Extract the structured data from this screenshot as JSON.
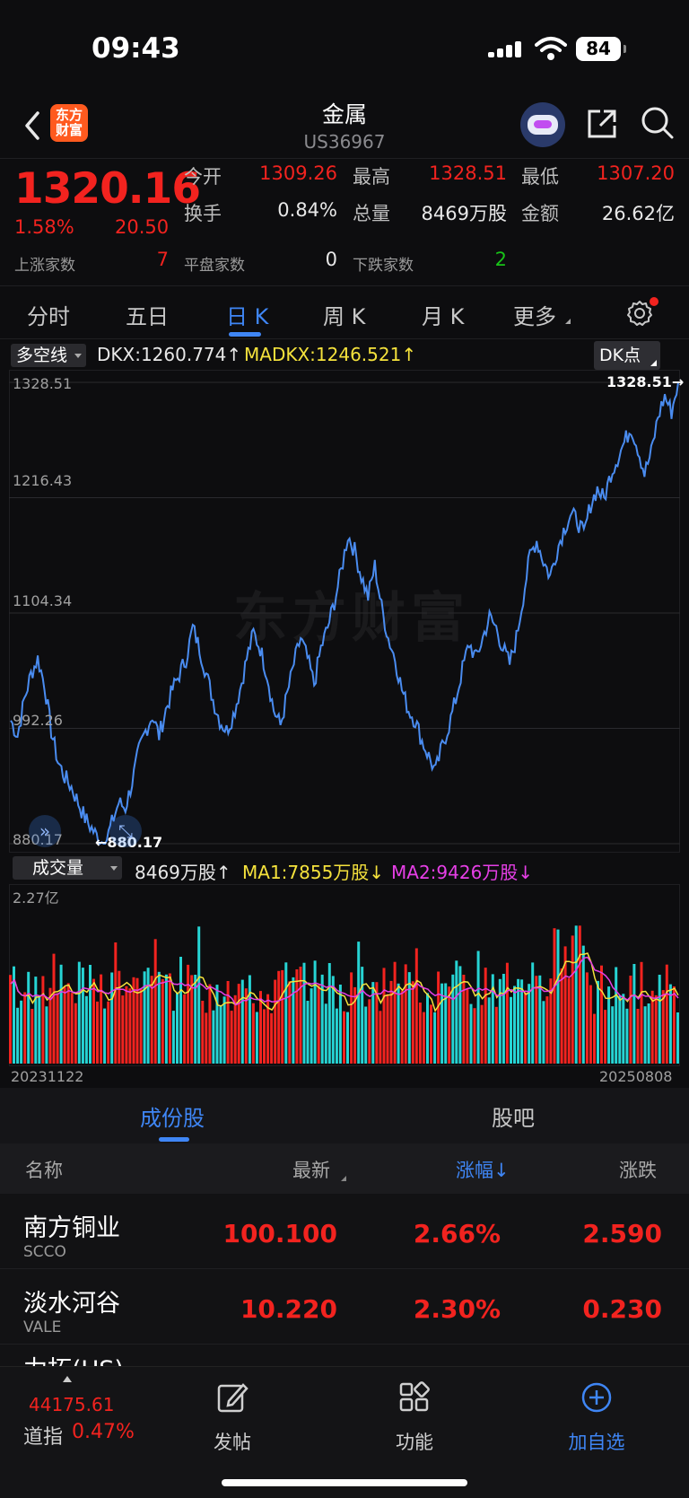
{
  "status": {
    "time": "09:43",
    "battery": "84"
  },
  "header": {
    "title": "金属",
    "code": "US36967",
    "logo_line1": "东方",
    "logo_line2": "财富"
  },
  "quote": {
    "price": "1320.16",
    "pct": "1.58%",
    "change": "20.50",
    "open_label": "今开",
    "open": "1309.26",
    "high_label": "最高",
    "high": "1328.51",
    "low_label": "最低",
    "low": "1307.20",
    "turnover_label": "换手",
    "turnover": "0.84%",
    "volume_label": "总量",
    "volume": "8469万股",
    "amount_label": "金额",
    "amount": "26.62亿",
    "up_label": "上涨家数",
    "up": "7",
    "flat_label": "平盘家数",
    "flat": "0",
    "down_label": "下跌家数",
    "down": "2"
  },
  "tabs": [
    "分时",
    "五日",
    "日 K",
    "周 K",
    "月 K",
    "更多"
  ],
  "indicator": {
    "dropdown": "多空线",
    "dkx": "DKX:1260.774↑",
    "madkx": "MADKX:1246.521↑",
    "dk_button": "DK点"
  },
  "price_axis": {
    "ticks": [
      "1328.51",
      "1216.43",
      "1104.34",
      "992.26",
      "880.17"
    ],
    "max_marker": "1328.51→",
    "min_marker": "←880.17"
  },
  "watermark": "东方财富",
  "volume": {
    "dropdown": "成交量",
    "vol": "8469万股↑",
    "ma1": "MA1:7855万股↓",
    "ma2": "MA2:9426万股↓",
    "max_label": "2.27亿",
    "start_date": "20231122",
    "end_date": "20250808"
  },
  "chart_data": {
    "type": "line",
    "title": "",
    "ylim": [
      880.17,
      1328.51
    ],
    "x_start": "20231122",
    "x_end": "20250808",
    "y": [
      1000,
      985,
      1020,
      1045,
      1060,
      1035,
      990,
      960,
      945,
      935,
      920,
      905,
      895,
      885,
      880.17,
      900,
      920,
      915,
      940,
      970,
      990,
      1005,
      985,
      1010,
      1030,
      1045,
      1060,
      1090,
      1070,
      1045,
      1020,
      1000,
      990,
      1005,
      1030,
      1060,
      1085,
      1070,
      1045,
      1010,
      995,
      1025,
      1055,
      1080,
      1060,
      1035,
      1070,
      1090,
      1115,
      1145,
      1180,
      1165,
      1140,
      1120,
      1150,
      1110,
      1080,
      1060,
      1030,
      1010,
      1000,
      980,
      965,
      950,
      975,
      995,
      1020,
      1050,
      1075,
      1060,
      1080,
      1100,
      1090,
      1070,
      1055,
      1080,
      1120,
      1160,
      1175,
      1155,
      1140,
      1165,
      1185,
      1200,
      1195,
      1180,
      1210,
      1225,
      1215,
      1240,
      1255,
      1270,
      1285,
      1265,
      1240,
      1260,
      1295,
      1315,
      1300,
      1328.51
    ],
    "volume_max_label": "2.27亿"
  },
  "sub_tabs": [
    "成份股",
    "股吧"
  ],
  "table": {
    "headers": [
      "名称",
      "最新",
      "涨幅↓",
      "涨跌"
    ],
    "rows": [
      {
        "name": "南方铜业",
        "code": "SCCO",
        "last": "100.100",
        "pct": "2.66%",
        "chg": "2.590"
      },
      {
        "name": "淡水河谷",
        "code": "VALE",
        "last": "10.220",
        "pct": "2.30%",
        "chg": "0.230"
      },
      {
        "name": "力拓(US)",
        "code": "",
        "last": "",
        "pct": "",
        "chg": ""
      }
    ]
  },
  "bottom": {
    "index_value": "44175.61",
    "index_label": "道指",
    "index_pct": "0.47%",
    "nav": [
      "发帖",
      "功能",
      "加自选"
    ]
  }
}
